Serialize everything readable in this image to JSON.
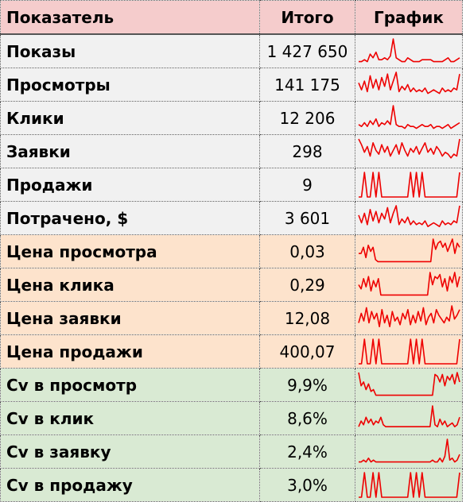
{
  "header": {
    "col_metric": "Показатель",
    "col_total": "Итого",
    "col_chart": "График"
  },
  "colors": {
    "line": "#ee0000",
    "header_bg": "#f5cccc",
    "gray_bg": "#f1f1f1",
    "orange_bg": "#fde3cc",
    "green_bg": "#d9ead3"
  },
  "rows": [
    {
      "label": "Показы",
      "total": "1 427 650",
      "group": "gray",
      "spark": [
        1,
        1,
        2,
        1,
        5,
        3,
        6,
        2,
        2,
        3,
        2,
        4,
        13,
        3,
        2,
        1,
        1,
        3,
        2,
        1,
        1,
        1,
        2,
        2,
        2,
        2,
        1,
        1,
        1,
        1,
        2,
        3,
        1,
        1,
        2,
        3
      ]
    },
    {
      "label": "Просмотры",
      "total": "141 175",
      "group": "gray",
      "spark": [
        8,
        4,
        9,
        3,
        12,
        5,
        10,
        4,
        11,
        6,
        13,
        4,
        9,
        14,
        3,
        6,
        4,
        7,
        3,
        5,
        3,
        4,
        3,
        5,
        2,
        3,
        4,
        3,
        2,
        5,
        3,
        4,
        3,
        5,
        4,
        13
      ]
    },
    {
      "label": "Клики",
      "total": "12 206",
      "group": "gray",
      "spark": [
        3,
        2,
        4,
        2,
        5,
        3,
        6,
        2,
        4,
        3,
        5,
        3,
        13,
        3,
        2,
        2,
        1,
        3,
        2,
        2,
        1,
        2,
        3,
        2,
        2,
        3,
        1,
        2,
        2,
        1,
        2,
        3,
        1,
        2,
        3,
        4
      ]
    },
    {
      "label": "Заявки",
      "total": "298",
      "group": "gray",
      "spark": [
        13,
        10,
        6,
        9,
        4,
        11,
        7,
        5,
        10,
        6,
        9,
        4,
        7,
        10,
        5,
        11,
        7,
        4,
        8,
        6,
        9,
        5,
        8,
        11,
        6,
        8,
        5,
        9,
        7,
        4,
        6,
        5,
        3,
        5,
        4,
        13
      ]
    },
    {
      "label": "Продажи",
      "total": "9",
      "group": "gray",
      "spark": [
        0,
        0,
        1,
        0,
        0,
        1,
        0,
        1,
        0,
        0,
        0,
        0,
        0,
        0,
        0,
        0,
        0,
        0,
        1,
        0,
        1,
        0,
        1,
        0,
        0,
        0,
        0,
        0,
        0,
        0,
        0,
        0,
        0,
        0,
        0,
        1
      ]
    },
    {
      "label": "Потрачено, $",
      "total": "3 601",
      "group": "gray",
      "spark": [
        8,
        4,
        9,
        3,
        11,
        5,
        10,
        4,
        9,
        6,
        12,
        4,
        9,
        13,
        3,
        6,
        4,
        7,
        3,
        5,
        3,
        4,
        3,
        5,
        2,
        3,
        4,
        3,
        2,
        5,
        3,
        4,
        3,
        5,
        4,
        13
      ]
    },
    {
      "label": "Цена просмотра",
      "total": "0,03",
      "group": "orange",
      "spark": [
        5,
        5,
        8,
        3,
        9,
        6,
        8,
        2,
        1,
        1,
        1,
        1,
        1,
        1,
        1,
        1,
        1,
        1,
        1,
        1,
        1,
        1,
        1,
        1,
        1,
        1,
        1,
        1,
        1,
        1,
        1,
        12,
        7,
        10,
        11,
        8,
        10,
        6,
        9,
        12,
        5,
        10,
        8
      ]
    },
    {
      "label": "Цена клика",
      "total": "0,29",
      "group": "orange",
      "spark": [
        6,
        4,
        9,
        5,
        10,
        3,
        8,
        5,
        9,
        1,
        1,
        1,
        1,
        1,
        1,
        1,
        1,
        1,
        1,
        1,
        1,
        1,
        1,
        1,
        1,
        1,
        1,
        1,
        1,
        12,
        6,
        10,
        9,
        11,
        5,
        9,
        3,
        10,
        7,
        12,
        5,
        10
      ]
    },
    {
      "label": "Цена заявки",
      "total": "12,08",
      "group": "orange",
      "spark": [
        4,
        9,
        5,
        12,
        4,
        10,
        6,
        9,
        2,
        11,
        4,
        8,
        2,
        10,
        5,
        7,
        3,
        9,
        6,
        11,
        3,
        8,
        4,
        10,
        5,
        12,
        3,
        7,
        9,
        4,
        11,
        8,
        6,
        4,
        7,
        5,
        13,
        6,
        8,
        11
      ]
    },
    {
      "label": "Цена продажи",
      "total": "400,07",
      "group": "orange",
      "spark": [
        0,
        0,
        1,
        0,
        0,
        1,
        0,
        1,
        0,
        0,
        0,
        0,
        0,
        0,
        0,
        0,
        0,
        0,
        1,
        0,
        1,
        0,
        1,
        0,
        0,
        0,
        0,
        0,
        0,
        0,
        0,
        0,
        0,
        0,
        0,
        1
      ]
    },
    {
      "label": "Cv в просмотр",
      "total": "9,9%",
      "group": "green",
      "spark": [
        13,
        6,
        8,
        4,
        7,
        3,
        4,
        1,
        1,
        1,
        1,
        1,
        1,
        1,
        1,
        1,
        1,
        1,
        1,
        1,
        1,
        1,
        1,
        1,
        1,
        1,
        1,
        1,
        1,
        1,
        1,
        12,
        11,
        8,
        12,
        6,
        11,
        9,
        12,
        7,
        13,
        8
      ]
    },
    {
      "label": "Cv в клик",
      "total": "8,6%",
      "group": "green",
      "spark": [
        2,
        5,
        3,
        7,
        4,
        6,
        3,
        5,
        4,
        7,
        3,
        2,
        2,
        2,
        2,
        2,
        2,
        2,
        2,
        2,
        2,
        2,
        2,
        2,
        2,
        2,
        2,
        2,
        2,
        2,
        13,
        3,
        2,
        6,
        3,
        5,
        2,
        3,
        4,
        2,
        3,
        7
      ]
    },
    {
      "label": "Cv в заявку",
      "total": "2,4%",
      "group": "green",
      "spark": [
        1,
        1,
        2,
        1,
        3,
        1,
        2,
        1,
        1,
        1,
        1,
        1,
        1,
        1,
        1,
        1,
        1,
        1,
        1,
        1,
        1,
        1,
        1,
        1,
        1,
        1,
        1,
        1,
        1,
        1,
        2,
        1,
        1,
        3,
        1,
        4,
        13,
        2,
        3,
        1,
        2,
        5
      ]
    },
    {
      "label": "Cv в продажу",
      "total": "3,0%",
      "group": "green",
      "spark": [
        0,
        0,
        1,
        0,
        0,
        1,
        0,
        1,
        0,
        0,
        0,
        0,
        0,
        0,
        0,
        0,
        0,
        0,
        1,
        0,
        1,
        0,
        1,
        0,
        0,
        0,
        0,
        0,
        0,
        0,
        0,
        0,
        0,
        0,
        0,
        1
      ]
    }
  ]
}
